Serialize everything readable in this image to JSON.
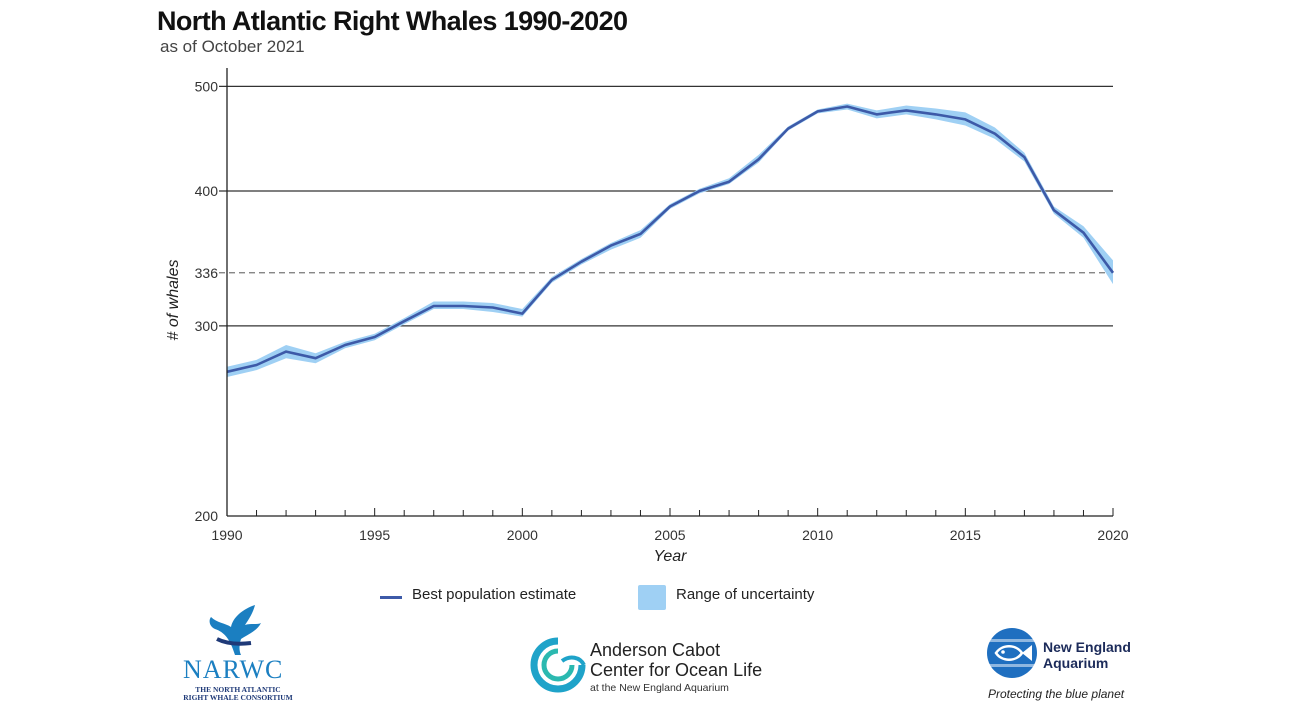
{
  "header": {
    "title": "North Atlantic Right Whales 1990-2020",
    "subtitle": "as of October 2021"
  },
  "chart_data": {
    "type": "line",
    "title": "North Atlantic Right Whales 1990-2020",
    "subtitle": "as of October 2021",
    "xlabel": "Year",
    "ylabel": "# of whales",
    "xlim": [
      1990,
      2020
    ],
    "ylim": [
      200,
      520
    ],
    "y_scale": "log",
    "x_ticks": [
      "1990",
      "1995",
      "2000",
      "2005",
      "2010",
      "2015",
      "2020"
    ],
    "y_ticks": [
      "200",
      "300",
      "336",
      "400",
      "500"
    ],
    "reference_line": {
      "value": 336,
      "style": "dashed"
    },
    "grid": "horizontal",
    "legend_position": "bottom",
    "series": [
      {
        "name": "Best population estimate",
        "x": [
          1990,
          1991,
          1992,
          1993,
          1994,
          1995,
          1996,
          1997,
          1998,
          1999,
          2000,
          2001,
          2002,
          2003,
          2004,
          2005,
          2006,
          2007,
          2008,
          2009,
          2010,
          2011,
          2012,
          2013,
          2014,
          2015,
          2016,
          2017,
          2018,
          2019,
          2020
        ],
        "values": [
          272,
          276,
          284,
          280,
          288,
          293,
          303,
          313,
          313,
          312,
          308,
          331,
          344,
          356,
          365,
          387,
          400,
          408,
          428,
          457,
          474,
          479,
          471,
          475,
          471,
          466,
          452,
          430,
          384,
          366,
          336
        ]
      },
      {
        "name": "Range of uncertainty",
        "x": [
          1990,
          1991,
          1992,
          1993,
          1994,
          1995,
          1996,
          1997,
          1998,
          1999,
          2000,
          2001,
          2002,
          2003,
          2004,
          2005,
          2006,
          2007,
          2008,
          2009,
          2010,
          2011,
          2012,
          2013,
          2014,
          2015,
          2016,
          2017,
          2018,
          2019,
          2020
        ],
        "lower": [
          269,
          273,
          280,
          277,
          286,
          291,
          301,
          311,
          311,
          309,
          306,
          329,
          342,
          353,
          362,
          385,
          398,
          406,
          425,
          455,
          472,
          476,
          467,
          471,
          466,
          460,
          447,
          426,
          381,
          362,
          328
        ],
        "upper": [
          275,
          279,
          288,
          283,
          290,
          295,
          305,
          316,
          316,
          315,
          311,
          333,
          346,
          358,
          368,
          389,
          402,
          411,
          432,
          459,
          476,
          482,
          475,
          480,
          477,
          473,
          458,
          434,
          387,
          371,
          345
        ]
      }
    ]
  },
  "legend": {
    "estimate_label": "Best population estimate",
    "uncertainty_label": "Range of uncertainty"
  },
  "logos": {
    "narwc_name": "NARWC",
    "narwc_tagline": "THE NORTH ATLANTIC RIGHT WHALE CONSORTIUM",
    "acc_line1": "Anderson Cabot",
    "acc_line2": "Center for Ocean Life",
    "acc_sub": "at the New England Aquarium",
    "nea_line1": "New England",
    "nea_line2": "Aquarium",
    "nea_tagline": "Protecting the blue planet"
  },
  "colors": {
    "line": "#3d5aa8",
    "band": "#9fd0f4",
    "grid": "#333333",
    "reference": "#777777"
  }
}
